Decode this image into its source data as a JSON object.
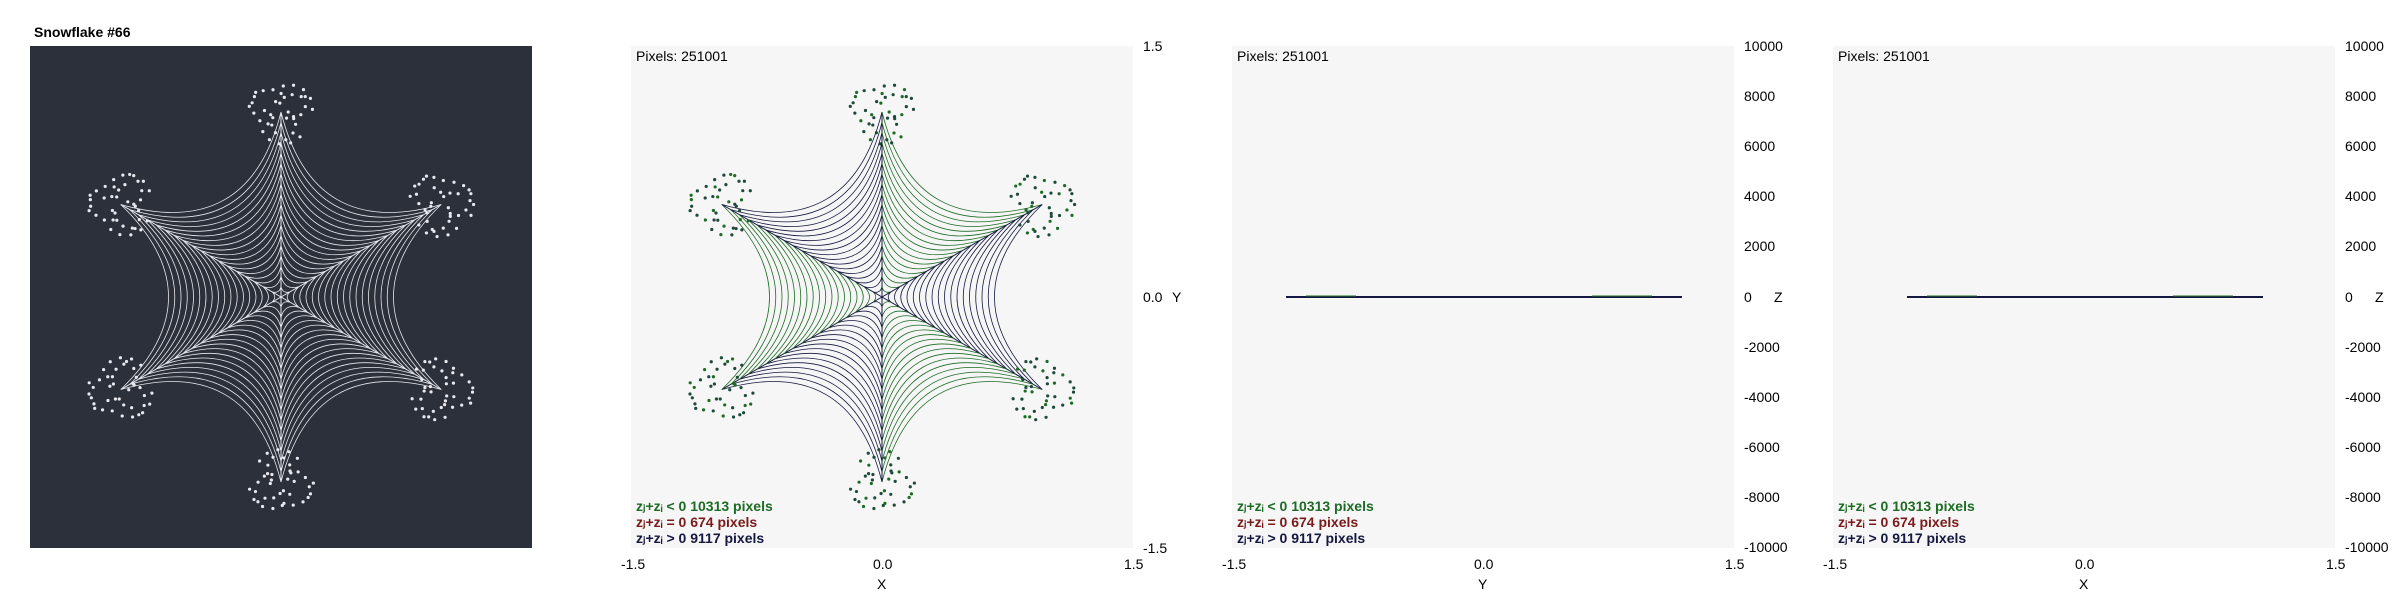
{
  "window": {
    "title": "Snowflake #66"
  },
  "colors": {
    "dark_bg": "#2b303b",
    "plot_bg": "#f6f6f6",
    "flake_white": "#e8e8ee",
    "flake_dark": "#151840",
    "flake_green": "#1d6b24",
    "legend_neg": "#1d6b24",
    "legend_zero": "#7a1a1a",
    "legend_pos": "#151840"
  },
  "panels": [
    {
      "pixels_label": "Pixels: 251001",
      "legend": {
        "neg": "zⱼ+zᵢ < 0  10313 pixels",
        "zero": "zⱼ+zᵢ = 0  674 pixels",
        "pos": "zⱼ+zᵢ > 0  9117 pixels"
      },
      "x_ticks": [
        "-1.5",
        "0.0",
        "1.5"
      ],
      "x_label": "X",
      "y_ticks": [
        "1.5",
        "0.0",
        "-1.5"
      ],
      "y_label": "Y"
    },
    {
      "pixels_label": "Pixels: 251001",
      "legend": {
        "neg": "zⱼ+zᵢ < 0  10313 pixels",
        "zero": "zⱼ+zᵢ = 0  674 pixels",
        "pos": "zⱼ+zᵢ > 0  9117 pixels"
      },
      "x_ticks": [
        "-1.5",
        "0.0",
        "1.5"
      ],
      "x_label": "Y",
      "z_ticks": [
        "10000",
        "8000",
        "6000",
        "4000",
        "2000",
        "0",
        "-2000",
        "-4000",
        "-6000",
        "-8000",
        "-10000"
      ],
      "z_label": "Z"
    },
    {
      "pixels_label": "Pixels: 251001",
      "legend": {
        "neg": "zⱼ+zᵢ < 0  10313 pixels",
        "zero": "zⱼ+zᵢ = 0  674 pixels",
        "pos": "zⱼ+zᵢ > 0  9117 pixels"
      },
      "x_ticks": [
        "-1.5",
        "0.0",
        "1.5"
      ],
      "x_label": "X",
      "z_ticks": [
        "10000",
        "8000",
        "6000",
        "4000",
        "2000",
        "0",
        "-2000",
        "-4000",
        "-6000",
        "-8000",
        "-10000"
      ],
      "z_label": "Z"
    }
  ]
}
